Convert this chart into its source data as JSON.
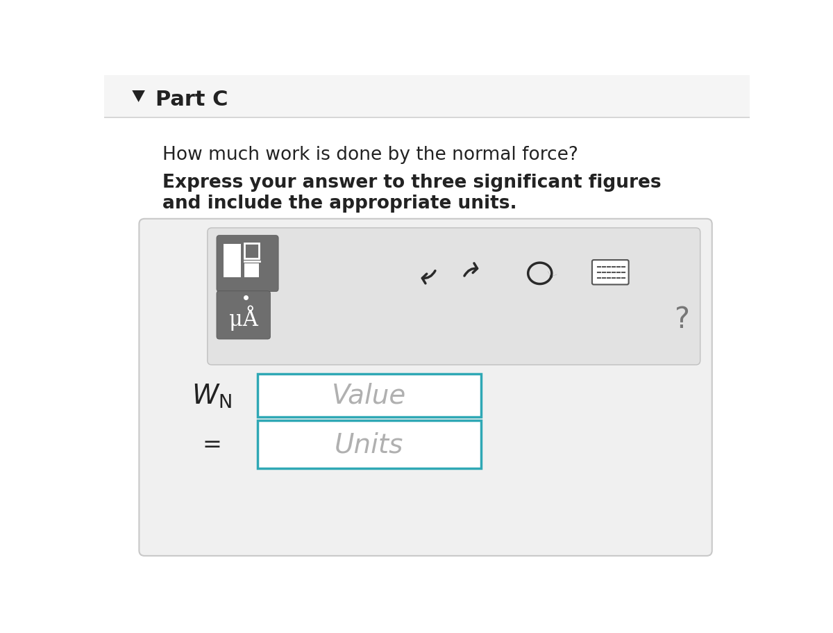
{
  "white": "#ffffff",
  "part_c_text": "Part C",
  "question_text": "How much work is done by the normal force?",
  "bold_text_line1": "Express your answer to three significant figures",
  "bold_text_line2": "and include the appropriate units.",
  "value_placeholder": "Value",
  "units_placeholder": "Units",
  "border_teal": "#2fa8b5",
  "text_color": "#222222",
  "placeholder_color": "#b0b0b0",
  "header_bg": "#f5f5f5",
  "header_border": "#d0d0d0",
  "outer_box_bg": "#f0f0f0",
  "outer_box_border": "#c8c8c8",
  "toolbar_bg": "#e2e2e2",
  "toolbar_border": "#c0c0c0",
  "btn_gray": "#6e6e6e",
  "icon_color": "#2a2a2a"
}
